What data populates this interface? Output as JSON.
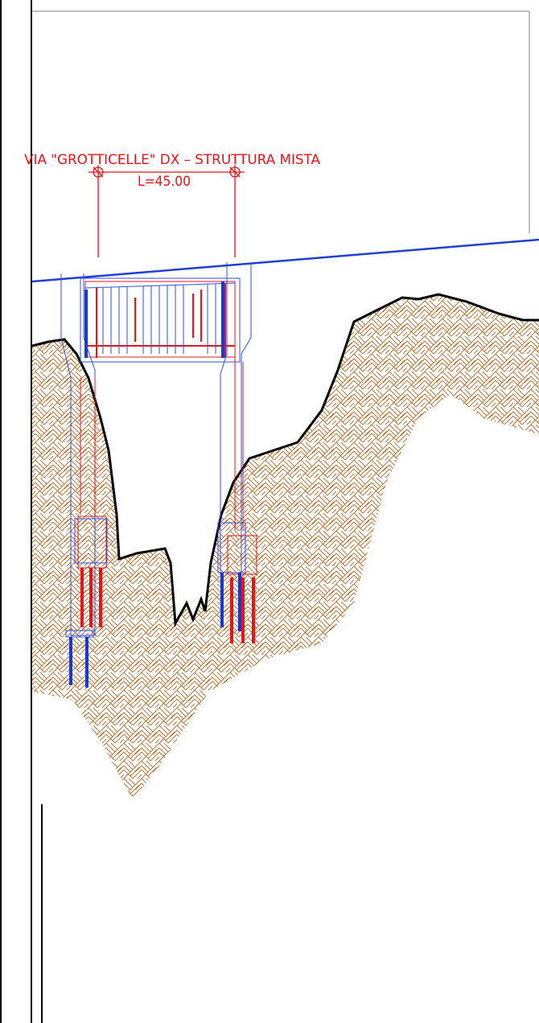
{
  "title": "VIA \"GROTTICELLE\" DX – STRUTTURA MISTA",
  "dimension": "L=45.00"
}
